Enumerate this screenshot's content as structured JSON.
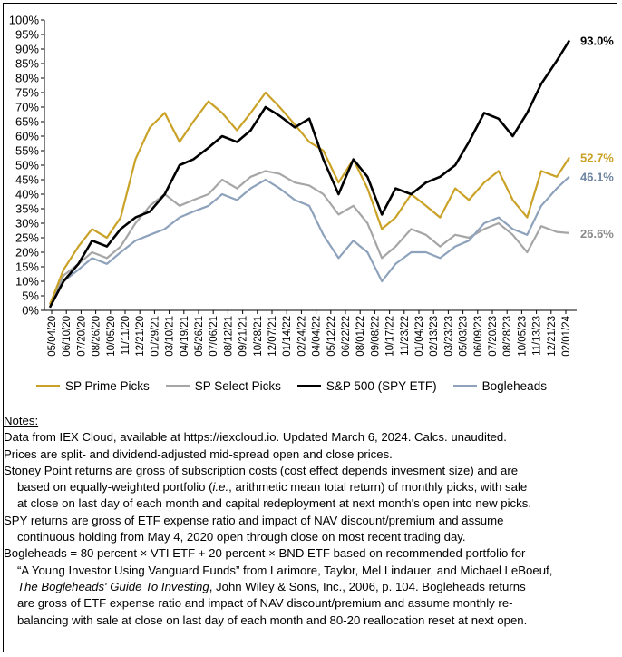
{
  "chart_data": {
    "type": "line",
    "title": "",
    "xlabel": "",
    "ylabel": "",
    "ylim": [
      0,
      100
    ],
    "yticks": [
      "0%",
      "5%",
      "10%",
      "15%",
      "20%",
      "25%",
      "30%",
      "35%",
      "40%",
      "45%",
      "50%",
      "55%",
      "60%",
      "65%",
      "70%",
      "75%",
      "80%",
      "85%",
      "90%",
      "95%",
      "100%"
    ],
    "x_tick_labels": [
      "05/04/20",
      "06/10/20",
      "07/20/20",
      "08/26/20",
      "10/05/20",
      "11/11/20",
      "12/21/20",
      "01/29/21",
      "03/10/21",
      "04/19/21",
      "05/26/21",
      "07/06/21",
      "08/12/21",
      "09/21/21",
      "10/28/21",
      "12/07/21",
      "01/14/22",
      "02/24/22",
      "04/04/22",
      "05/12/22",
      "06/22/22",
      "08/01/22",
      "09/08/22",
      "10/17/22",
      "11/23/22",
      "01/04/23",
      "02/13/23",
      "03/23/23",
      "05/03/23",
      "06/09/23",
      "07/20/23",
      "08/28/23",
      "10/05/23",
      "11/13/23",
      "12/21/23",
      "02/01/24"
    ],
    "grid": false,
    "legend_placement": "bottom",
    "series": [
      {
        "name": "SP Prime Picks",
        "color": "#C9A227",
        "end_label": "52.7%",
        "x": [
          "2020-05-04",
          "2020-06-10",
          "2020-07-20",
          "2020-08-26",
          "2020-10-05",
          "2020-11-11",
          "2020-12-21",
          "2021-01-29",
          "2021-03-10",
          "2021-04-19",
          "2021-05-26",
          "2021-07-06",
          "2021-08-12",
          "2021-09-21",
          "2021-10-28",
          "2021-12-07",
          "2022-01-14",
          "2022-02-24",
          "2022-04-04",
          "2022-05-12",
          "2022-06-22",
          "2022-08-01",
          "2022-09-08",
          "2022-10-17",
          "2022-11-23",
          "2023-01-04",
          "2023-02-13",
          "2023-03-23",
          "2023-05-03",
          "2023-06-09",
          "2023-07-20",
          "2023-08-28",
          "2023-10-05",
          "2023-11-13",
          "2023-12-21",
          "2024-02-01",
          "2024-03-06"
        ],
        "values": [
          2,
          14,
          22,
          28,
          25,
          32,
          52,
          63,
          68,
          58,
          65,
          72,
          68,
          62,
          68,
          75,
          70,
          64,
          58,
          55,
          44,
          52,
          42,
          28,
          32,
          40,
          36,
          32,
          42,
          38,
          44,
          48,
          38,
          32,
          48,
          46,
          52.7
        ]
      },
      {
        "name": "SP Select Picks",
        "color": "#A6A6A6",
        "end_label": "26.6%",
        "x": [
          "2020-05-04",
          "2020-06-10",
          "2020-07-20",
          "2020-08-26",
          "2020-10-05",
          "2020-11-11",
          "2020-12-21",
          "2021-01-29",
          "2021-03-10",
          "2021-04-19",
          "2021-05-26",
          "2021-07-06",
          "2021-08-12",
          "2021-09-21",
          "2021-10-28",
          "2021-12-07",
          "2022-01-14",
          "2022-02-24",
          "2022-04-04",
          "2022-05-12",
          "2022-06-22",
          "2022-08-01",
          "2022-09-08",
          "2022-10-17",
          "2022-11-23",
          "2023-01-04",
          "2023-02-13",
          "2023-03-23",
          "2023-05-03",
          "2023-06-09",
          "2023-07-20",
          "2023-08-28",
          "2023-10-05",
          "2023-11-13",
          "2023-12-21",
          "2024-02-01",
          "2024-03-06"
        ],
        "values": [
          2,
          12,
          16,
          20,
          18,
          22,
          30,
          36,
          40,
          36,
          38,
          40,
          45,
          42,
          46,
          48,
          47,
          44,
          43,
          40,
          33,
          36,
          30,
          18,
          22,
          28,
          26,
          22,
          26,
          25,
          28,
          30,
          26,
          20,
          29,
          27,
          26.6
        ]
      },
      {
        "name": "S&P 500 (SPY ETF)",
        "color": "#000000",
        "end_label": "93.0%",
        "x": [
          "2020-05-04",
          "2020-06-10",
          "2020-07-20",
          "2020-08-26",
          "2020-10-05",
          "2020-11-11",
          "2020-12-21",
          "2021-01-29",
          "2021-03-10",
          "2021-04-19",
          "2021-05-26",
          "2021-07-06",
          "2021-08-12",
          "2021-09-21",
          "2021-10-28",
          "2021-12-07",
          "2022-01-14",
          "2022-02-24",
          "2022-04-04",
          "2022-05-12",
          "2022-06-22",
          "2022-08-01",
          "2022-09-08",
          "2022-10-17",
          "2022-11-23",
          "2023-01-04",
          "2023-02-13",
          "2023-03-23",
          "2023-05-03",
          "2023-06-09",
          "2023-07-20",
          "2023-08-28",
          "2023-10-05",
          "2023-11-13",
          "2023-12-21",
          "2024-02-01",
          "2024-03-06"
        ],
        "values": [
          1,
          10,
          16,
          24,
          22,
          28,
          32,
          34,
          40,
          50,
          52,
          56,
          60,
          58,
          62,
          70,
          67,
          63,
          66,
          52,
          40,
          52,
          46,
          33,
          42,
          40,
          44,
          46,
          50,
          58,
          68,
          66,
          60,
          68,
          78,
          86,
          93.0
        ]
      },
      {
        "name": "Bogleheads",
        "color": "#8EA2BC",
        "end_label": "46.1%",
        "x": [
          "2020-05-04",
          "2020-06-10",
          "2020-07-20",
          "2020-08-26",
          "2020-10-05",
          "2020-11-11",
          "2020-12-21",
          "2021-01-29",
          "2021-03-10",
          "2021-04-19",
          "2021-05-26",
          "2021-07-06",
          "2021-08-12",
          "2021-09-21",
          "2021-10-28",
          "2021-12-07",
          "2022-01-14",
          "2022-02-24",
          "2022-04-04",
          "2022-05-12",
          "2022-06-22",
          "2022-08-01",
          "2022-09-08",
          "2022-10-17",
          "2022-11-23",
          "2023-01-04",
          "2023-02-13",
          "2023-03-23",
          "2023-05-03",
          "2023-06-09",
          "2023-07-20",
          "2023-08-28",
          "2023-10-05",
          "2023-11-13",
          "2023-12-21",
          "2024-02-01",
          "2024-03-06"
        ],
        "values": [
          2,
          10,
          14,
          18,
          16,
          20,
          24,
          26,
          28,
          32,
          34,
          36,
          40,
          38,
          42,
          45,
          42,
          38,
          36,
          26,
          18,
          24,
          20,
          10,
          16,
          20,
          20,
          18,
          22,
          24,
          30,
          32,
          28,
          26,
          36,
          42,
          46.1
        ]
      }
    ]
  },
  "notes": {
    "title": "Notes:",
    "line1": "Data from IEX Cloud, available at https://iexcloud.io. Updated March 6, 2024. Calcs. unaudited.",
    "line2": "Prices are split- and dividend-adjusted mid-spread open and close prices.",
    "line3a": "Stoney Point returns are gross of subscription costs (cost effect depends invesment size) and are",
    "line3b_pre": "based on equally-weighted portfolio (",
    "line3b_ie": "i.e.",
    "line3b_post": ", arithmetic mean total return) of monthly picks, with sale",
    "line3c": "at close on last day of each month and capital redeployment at next month's open into new picks.",
    "line4a": "SPY returns are gross of ETF expense ratio and impact of NAV discount/premium and assume",
    "line4b": "continuous holding from May 4, 2020 open through close on most recent trading day.",
    "line5a": "Bogleheads = 80 percent × VTI ETF + 20 percent × BND ETF based on recommended portfolio for",
    "line5b": "“A Young Investor Using Vanguard Funds” from Larimore, Taylor, Mel Lindauer, and Michael LeBoeuf,",
    "line5c_book": "The Bogleheads' Guide To Investing",
    "line5c_post": ", John Wiley & Sons, Inc., 2006, p. 104. Bogleheads returns",
    "line5d": "are gross of ETF expense ratio and impact of NAV discount/premium and assume monthly re-",
    "line5e": "balancing with sale at close on last day of each month and 80-20 reallocation reset at next open."
  }
}
